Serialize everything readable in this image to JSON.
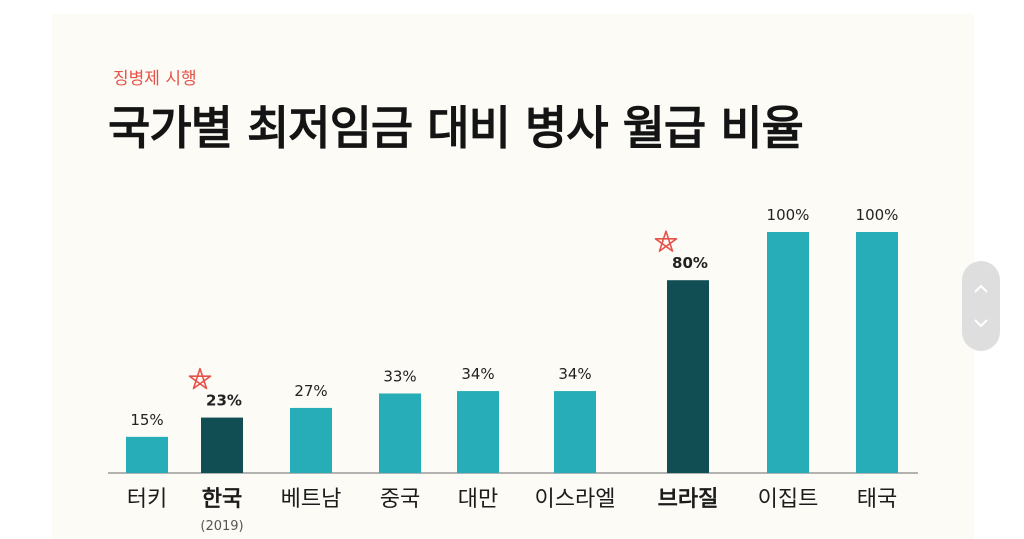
{
  "header": {
    "subtitle": "징병제 시행",
    "title": "국가별 최저임금 대비 병사 월급 비율"
  },
  "chart_data": {
    "type": "bar",
    "categories": [
      "터키",
      "한국",
      "베트남",
      "중국",
      "대만",
      "이스라엘",
      "브라질",
      "이집트",
      "태국"
    ],
    "category_notes": [
      "",
      "(2019)",
      "",
      "",
      "",
      "",
      "",
      "",
      ""
    ],
    "values": [
      15,
      23,
      27,
      33,
      34,
      34,
      80,
      100,
      100
    ],
    "value_labels": [
      "15%",
      "23%",
      "27%",
      "33%",
      "34%",
      "34%",
      "80%",
      "100%",
      "100%"
    ],
    "highlighted": [
      false,
      true,
      false,
      false,
      false,
      false,
      true,
      false,
      false
    ],
    "highlight_marker": "star-icon",
    "ylim": [
      0,
      100
    ],
    "grid": false,
    "legend": "none",
    "colors": {
      "bar": "#27adb7",
      "bar_highlight": "#114e54",
      "axis": "#9a9a9a",
      "label": "#222222",
      "marker": "#e5534b"
    }
  },
  "scroll": {
    "up_icon": "chevron-up-icon",
    "down_icon": "chevron-down-icon"
  }
}
